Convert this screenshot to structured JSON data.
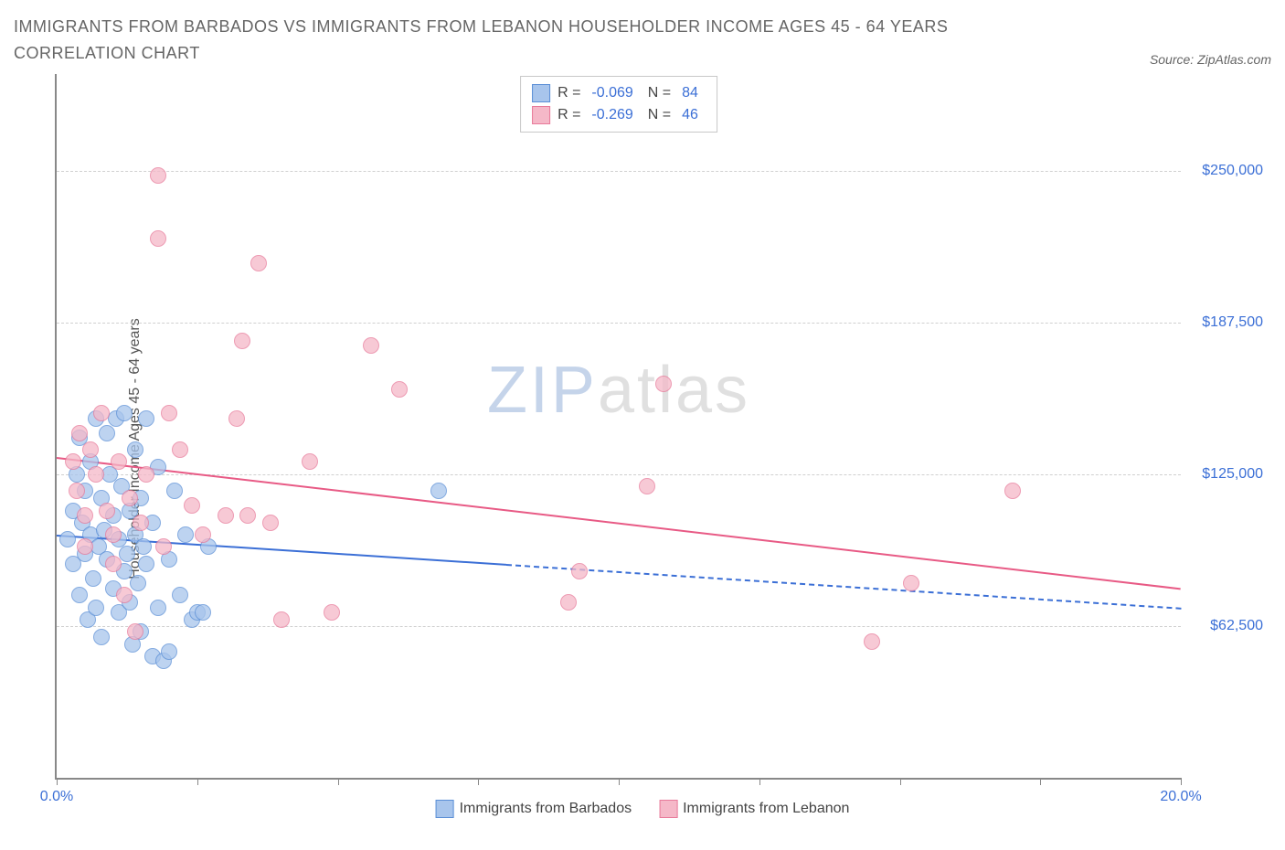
{
  "title": "IMMIGRANTS FROM BARBADOS VS IMMIGRANTS FROM LEBANON HOUSEHOLDER INCOME AGES 45 - 64 YEARS CORRELATION CHART",
  "source_label": "Source: ZipAtlas.com",
  "watermark": {
    "zip": "ZIP",
    "atlas": "atlas"
  },
  "chart": {
    "type": "scatter",
    "ylabel": "Householder Income Ages 45 - 64 years",
    "x_range": [
      0.0,
      20.0
    ],
    "y_range": [
      0,
      290000
    ],
    "x_ticks": [
      0.0,
      2.5,
      5.0,
      7.5,
      10.0,
      12.5,
      15.0,
      17.5,
      20.0
    ],
    "x_tick_labels": {
      "0": "0.0%",
      "20": "20.0%"
    },
    "y_ticks": [
      62500,
      125000,
      187500,
      250000
    ],
    "y_tick_labels": [
      "$62,500",
      "$125,000",
      "$187,500",
      "$250,000"
    ],
    "background_color": "#ffffff",
    "grid_color": "#d0d0d0",
    "axis_color": "#888888",
    "label_color": "#3b6fd6",
    "marker_radius": 8,
    "series": [
      {
        "name": "Immigrants from Barbados",
        "fill": "#a8c5ec",
        "stroke": "#5b8fd6",
        "line_color": "#3b6fd6",
        "R": "-0.069",
        "N": "84",
        "regression": {
          "x1": 0.0,
          "y1": 100000,
          "x2_solid": 8.0,
          "y2_solid": 88000,
          "x2_dash": 20.0,
          "y2_dash": 70000
        },
        "points": [
          [
            0.2,
            98000
          ],
          [
            0.3,
            110000
          ],
          [
            0.3,
            88000
          ],
          [
            0.35,
            125000
          ],
          [
            0.4,
            140000
          ],
          [
            0.4,
            75000
          ],
          [
            0.45,
            105000
          ],
          [
            0.5,
            92000
          ],
          [
            0.5,
            118000
          ],
          [
            0.55,
            65000
          ],
          [
            0.6,
            100000
          ],
          [
            0.6,
            130000
          ],
          [
            0.65,
            82000
          ],
          [
            0.7,
            148000
          ],
          [
            0.7,
            70000
          ],
          [
            0.75,
            95000
          ],
          [
            0.8,
            115000
          ],
          [
            0.8,
            58000
          ],
          [
            0.85,
            102000
          ],
          [
            0.9,
            90000
          ],
          [
            0.9,
            142000
          ],
          [
            0.95,
            125000
          ],
          [
            1.0,
            78000
          ],
          [
            1.0,
            108000
          ],
          [
            1.05,
            148000
          ],
          [
            1.1,
            68000
          ],
          [
            1.1,
            98000
          ],
          [
            1.15,
            120000
          ],
          [
            1.2,
            85000
          ],
          [
            1.2,
            150000
          ],
          [
            1.25,
            92000
          ],
          [
            1.3,
            72000
          ],
          [
            1.3,
            110000
          ],
          [
            1.35,
            55000
          ],
          [
            1.4,
            100000
          ],
          [
            1.4,
            135000
          ],
          [
            1.45,
            80000
          ],
          [
            1.5,
            115000
          ],
          [
            1.5,
            60000
          ],
          [
            1.55,
            95000
          ],
          [
            1.6,
            148000
          ],
          [
            1.6,
            88000
          ],
          [
            1.7,
            50000
          ],
          [
            1.7,
            105000
          ],
          [
            1.8,
            70000
          ],
          [
            1.8,
            128000
          ],
          [
            1.9,
            48000
          ],
          [
            2.0,
            90000
          ],
          [
            2.0,
            52000
          ],
          [
            2.1,
            118000
          ],
          [
            2.2,
            75000
          ],
          [
            2.3,
            100000
          ],
          [
            2.4,
            65000
          ],
          [
            2.5,
            68000
          ],
          [
            2.6,
            68000
          ],
          [
            2.7,
            95000
          ],
          [
            6.8,
            118000
          ]
        ]
      },
      {
        "name": "Immigrants from Lebanon",
        "fill": "#f5b8c8",
        "stroke": "#e87a9a",
        "line_color": "#e85a85",
        "R": "-0.269",
        "N": "46",
        "regression": {
          "x1": 0.0,
          "y1": 132000,
          "x2_solid": 20.0,
          "y2_solid": 78000
        },
        "points": [
          [
            0.3,
            130000
          ],
          [
            0.35,
            118000
          ],
          [
            0.4,
            142000
          ],
          [
            0.5,
            108000
          ],
          [
            0.5,
            95000
          ],
          [
            0.6,
            135000
          ],
          [
            0.7,
            125000
          ],
          [
            0.8,
            150000
          ],
          [
            0.9,
            110000
          ],
          [
            1.0,
            100000
          ],
          [
            1.0,
            88000
          ],
          [
            1.1,
            130000
          ],
          [
            1.2,
            75000
          ],
          [
            1.3,
            115000
          ],
          [
            1.4,
            60000
          ],
          [
            1.5,
            105000
          ],
          [
            1.6,
            125000
          ],
          [
            1.8,
            248000
          ],
          [
            1.8,
            222000
          ],
          [
            1.9,
            95000
          ],
          [
            2.0,
            150000
          ],
          [
            2.2,
            135000
          ],
          [
            2.4,
            112000
          ],
          [
            2.6,
            100000
          ],
          [
            3.0,
            108000
          ],
          [
            3.2,
            148000
          ],
          [
            3.3,
            180000
          ],
          [
            3.4,
            108000
          ],
          [
            3.6,
            212000
          ],
          [
            3.8,
            105000
          ],
          [
            4.0,
            65000
          ],
          [
            4.5,
            130000
          ],
          [
            4.9,
            68000
          ],
          [
            5.6,
            178000
          ],
          [
            6.1,
            160000
          ],
          [
            9.1,
            72000
          ],
          [
            9.3,
            85000
          ],
          [
            10.5,
            120000
          ],
          [
            10.8,
            162000
          ],
          [
            14.5,
            56000
          ],
          [
            15.2,
            80000
          ],
          [
            17.0,
            118000
          ]
        ]
      }
    ]
  }
}
